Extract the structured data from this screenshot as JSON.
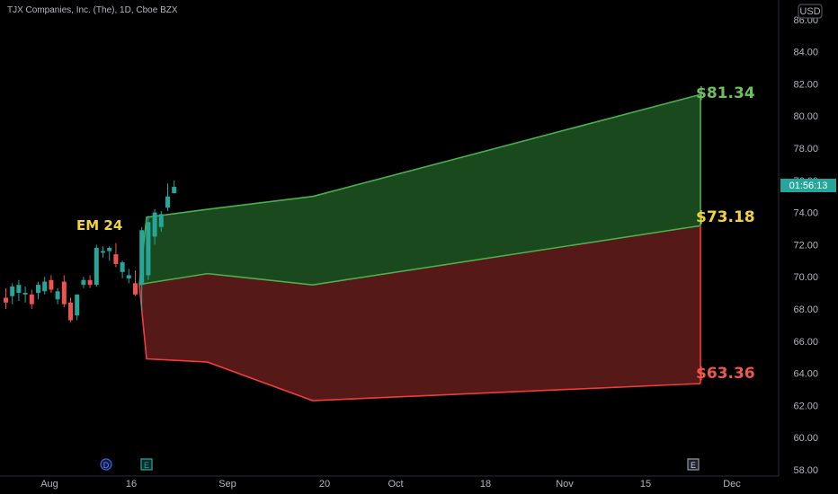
{
  "header": {
    "symbol_title": "TJX Companies, Inc. (The), 1D, Cboe BZX",
    "currency": "USD"
  },
  "countdown": "01:56:13",
  "colors": {
    "accent_teal": "#26a69a",
    "bear_red": "#ef5350",
    "upper_line": "#4caf50",
    "lower_line": "#f23b3b",
    "upper_fill": "#1b4d1f",
    "lower_fill": "#5a1a18",
    "label_green": "#6fbf5f",
    "label_yellow": "#f2d23a",
    "label_red": "#f2574c"
  },
  "events": [
    {
      "icon": "dividend-icon",
      "letter": "D"
    },
    {
      "icon": "earnings-icon",
      "letter": "E"
    },
    {
      "icon": "earnings-icon",
      "letter": "E"
    }
  ],
  "chart_data": {
    "type": "area",
    "annotation": "EM 24",
    "x_tick_labels": [
      "Aug",
      "16",
      "Sep",
      "20",
      "Oct",
      "18",
      "Nov",
      "15",
      "Dec"
    ],
    "y_tick_labels": [
      "58.00",
      "60.00",
      "62.00",
      "64.00",
      "66.00",
      "68.00",
      "70.00",
      "72.00",
      "74.00",
      "76.00",
      "78.00",
      "80.00",
      "82.00",
      "84.00",
      "86.00"
    ],
    "ylim": [
      58,
      86
    ],
    "grid": false,
    "candles": [
      {
        "o": 68.7,
        "h": 69.3,
        "l": 68.0,
        "c": 68.4
      },
      {
        "o": 68.8,
        "h": 69.6,
        "l": 68.3,
        "c": 69.4
      },
      {
        "o": 69.0,
        "h": 69.8,
        "l": 68.5,
        "c": 69.5
      },
      {
        "o": 68.9,
        "h": 69.4,
        "l": 68.4,
        "c": 69.0
      },
      {
        "o": 68.9,
        "h": 69.2,
        "l": 68.0,
        "c": 68.3
      },
      {
        "o": 69.0,
        "h": 69.7,
        "l": 68.6,
        "c": 69.5
      },
      {
        "o": 69.1,
        "h": 70.0,
        "l": 68.9,
        "c": 69.7
      },
      {
        "o": 69.8,
        "h": 70.1,
        "l": 69.0,
        "c": 69.2
      },
      {
        "o": 68.6,
        "h": 69.3,
        "l": 68.3,
        "c": 69.1
      },
      {
        "o": 69.7,
        "h": 70.1,
        "l": 68.1,
        "c": 68.3
      },
      {
        "o": 68.4,
        "h": 68.7,
        "l": 67.2,
        "c": 67.3
      },
      {
        "o": 67.6,
        "h": 68.9,
        "l": 67.3,
        "c": 68.9
      },
      {
        "o": 69.5,
        "h": 70.0,
        "l": 69.3,
        "c": 69.8
      },
      {
        "o": 69.8,
        "h": 70.1,
        "l": 69.3,
        "c": 69.5
      },
      {
        "o": 69.5,
        "h": 72.0,
        "l": 69.4,
        "c": 71.8
      },
      {
        "o": 71.5,
        "h": 71.9,
        "l": 71.2,
        "c": 71.6
      },
      {
        "o": 71.6,
        "h": 71.9,
        "l": 71.0,
        "c": 71.8
      },
      {
        "o": 71.4,
        "h": 72.1,
        "l": 70.6,
        "c": 70.8
      },
      {
        "o": 70.3,
        "h": 71.0,
        "l": 69.9,
        "c": 70.9
      },
      {
        "o": 69.9,
        "h": 70.5,
        "l": 69.6,
        "c": 70.1
      },
      {
        "o": 69.6,
        "h": 70.4,
        "l": 68.8,
        "c": 68.9
      },
      {
        "o": 69.5,
        "h": 73.1,
        "l": 67.9,
        "c": 72.9
      },
      {
        "o": 70.1,
        "h": 73.8,
        "l": 69.8,
        "c": 73.4
      },
      {
        "o": 72.5,
        "h": 74.2,
        "l": 72.0,
        "c": 74.0
      },
      {
        "o": 73.1,
        "h": 74.1,
        "l": 72.8,
        "c": 73.9
      },
      {
        "o": 74.3,
        "h": 75.8,
        "l": 74.1,
        "c": 75.0
      },
      {
        "o": 75.2,
        "h": 76.0,
        "l": 75.2,
        "c": 75.6
      }
    ],
    "series": [
      {
        "name": "$81.34",
        "values": [
          73.7,
          74.2,
          75.0,
          81.34
        ]
      },
      {
        "name": "$73.18",
        "values": [
          69.6,
          70.2,
          69.5,
          73.18
        ]
      },
      {
        "name": "$63.36",
        "values": [
          64.9,
          64.7,
          62.3,
          63.36
        ]
      }
    ],
    "band_x_days": [
      0,
      11,
      30,
      100
    ],
    "band_start_value": 69.5
  }
}
